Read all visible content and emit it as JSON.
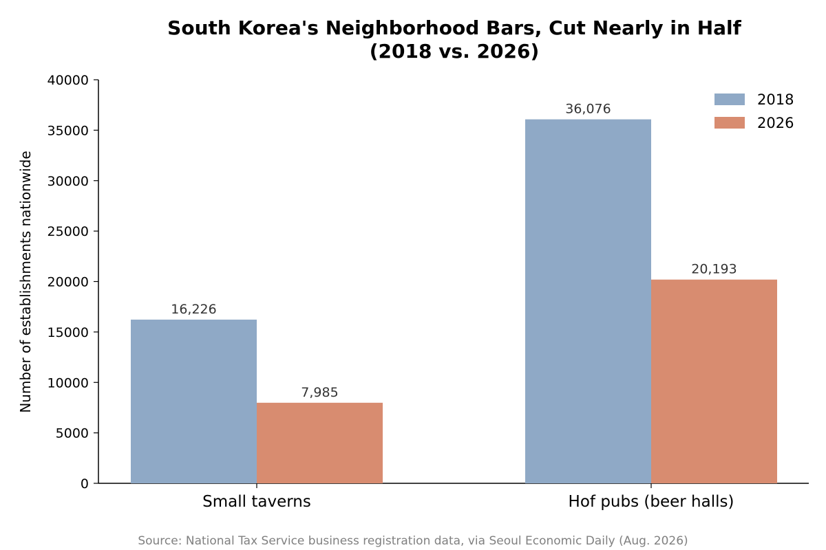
{
  "chart_data": {
    "type": "bar",
    "title": "South Korea's Neighborhood Bars, Cut Nearly in Half",
    "subtitle": "(2018 vs. 2026)",
    "xlabel": "",
    "ylabel": "Number of establishments nationwide",
    "categories": [
      "Small taverns",
      "Hof pubs (beer halls)"
    ],
    "series": [
      {
        "name": "2018",
        "values": [
          16226,
          36076
        ],
        "labels": [
          "16,226",
          "36,076"
        ],
        "color": "#8fa9c6"
      },
      {
        "name": "2026",
        "values": [
          7985,
          20193
        ],
        "labels": [
          "7,985",
          "20,193"
        ],
        "color": "#d88c70"
      }
    ],
    "ylim": [
      0,
      40000
    ],
    "yticks": [
      0,
      5000,
      10000,
      15000,
      20000,
      25000,
      30000,
      35000,
      40000
    ],
    "ytick_labels": [
      "0",
      "5000",
      "10000",
      "15000",
      "20000",
      "25000",
      "30000",
      "35000",
      "40000"
    ],
    "grid": false,
    "legend_position": "top-right"
  },
  "footer": {
    "source": "Source: National Tax Service business registration data, via Seoul Economic Daily (Aug. 2026)"
  }
}
